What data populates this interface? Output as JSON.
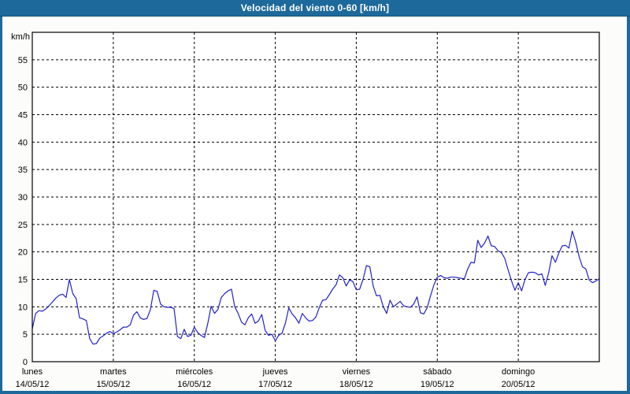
{
  "window": {
    "title": "Velocidad del viento 0-60 [km/h]"
  },
  "colors": {
    "frame_blue": "#1E699B",
    "frame_edge": "#155075",
    "title_text": "#FFFFFF",
    "plot_background": "#FFFFFF",
    "page_background": "#FCFDFB",
    "grid": "#000000",
    "axis": "#000000",
    "label_text": "#000000",
    "line": "#2222CC"
  },
  "chart_data": {
    "type": "line",
    "title": "Velocidad del viento 0-60 [km/h]",
    "ylabel": "km/h",
    "xlabel": "",
    "ylim": [
      0,
      60
    ],
    "ytick_step": 5,
    "ytick_labels": [
      "0",
      "5",
      "10",
      "15",
      "20",
      "25",
      "30",
      "35",
      "40",
      "45",
      "50",
      "55"
    ],
    "grid": true,
    "legend_position": "none",
    "x_hours_total": 168,
    "categories": [
      {
        "name": "lunes",
        "date": "14/05/12"
      },
      {
        "name": "martes",
        "date": "15/05/12"
      },
      {
        "name": "miércoles",
        "date": "16/05/12"
      },
      {
        "name": "jueves",
        "date": "17/05/12"
      },
      {
        "name": "viernes",
        "date": "18/05/12"
      },
      {
        "name": "sábado",
        "date": "19/05/12"
      },
      {
        "name": "domingo",
        "date": "20/05/12"
      }
    ],
    "series": [
      {
        "name": "Velocidad del viento",
        "color": "#2222CC",
        "unit": "km/h",
        "values": [
          6.0,
          8.8,
          9.3,
          9.2,
          9.6,
          10.2,
          10.9,
          11.6,
          12.1,
          12.3,
          11.7,
          15.0,
          12.4,
          11.5,
          8.0,
          7.8,
          7.5,
          4.2,
          3.2,
          3.3,
          4.3,
          4.7,
          5.2,
          5.5,
          5.1,
          5.4,
          5.8,
          6.3,
          6.3,
          6.7,
          8.5,
          9.1,
          8.0,
          7.7,
          7.9,
          9.5,
          13.0,
          12.8,
          10.5,
          10.0,
          9.9,
          9.9,
          9.7,
          4.6,
          4.2,
          5.9,
          4.6,
          4.8,
          6.3,
          5.3,
          4.8,
          4.4,
          7.0,
          10.1,
          8.8,
          9.5,
          11.7,
          12.4,
          12.9,
          13.2,
          10.0,
          8.8,
          7.2,
          6.7,
          8.0,
          8.7,
          7.0,
          7.4,
          8.6,
          5.7,
          4.8,
          5.0,
          3.8,
          4.8,
          5.2,
          7.0,
          9.8,
          8.7,
          8.0,
          7.0,
          8.8,
          8.0,
          7.4,
          7.5,
          8.1,
          9.8,
          11.2,
          11.3,
          12.2,
          13.2,
          14.0,
          15.8,
          15.3,
          13.8,
          14.9,
          14.6,
          13.1,
          13.2,
          15.0,
          17.5,
          17.3,
          13.8,
          12.0,
          12.1,
          10.0,
          8.8,
          11.2,
          10.0,
          10.5,
          11.0,
          10.2,
          10.0,
          9.9,
          10.5,
          11.8,
          8.9,
          8.7,
          9.8,
          12.0,
          14.0,
          15.4,
          15.7,
          15.3,
          15.2,
          15.4,
          15.4,
          15.3,
          15.2,
          15.1,
          16.9,
          18.1,
          18.0,
          22.1,
          20.8,
          21.6,
          22.9,
          21.1,
          21.0,
          20.2,
          19.9,
          18.8,
          16.7,
          14.7,
          13.0,
          14.4,
          12.9,
          15.0,
          16.2,
          16.3,
          16.2,
          15.8,
          16.0,
          13.9,
          16.2,
          19.3,
          18.1,
          19.8,
          21.1,
          21.2,
          20.7,
          23.8,
          21.8,
          19.2,
          17.3,
          16.9,
          14.9,
          14.4,
          14.7,
          15.1
        ]
      }
    ]
  }
}
